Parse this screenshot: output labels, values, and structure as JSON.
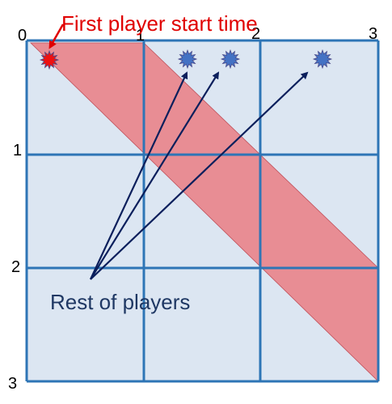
{
  "annotations": {
    "first_player": "First player start time",
    "rest_players": "Rest of players"
  },
  "axis": {
    "x_ticks": [
      "0",
      "1",
      "2",
      "3"
    ],
    "y_ticks": [
      "1",
      "2",
      "3"
    ]
  },
  "markers": {
    "first_player": {
      "color": "#ee1111",
      "icon": "star-burst-icon"
    },
    "rest_players": {
      "color": "#4472c4",
      "count": 3,
      "icon": "star-burst-icon"
    }
  },
  "colors": {
    "grid": "#2e75b6",
    "cell_fill": "#dce6f2",
    "band": "#e8858c",
    "arrows": "#0b1f5c",
    "first_label": "#e00000",
    "rest_label": "#1f3864"
  }
}
